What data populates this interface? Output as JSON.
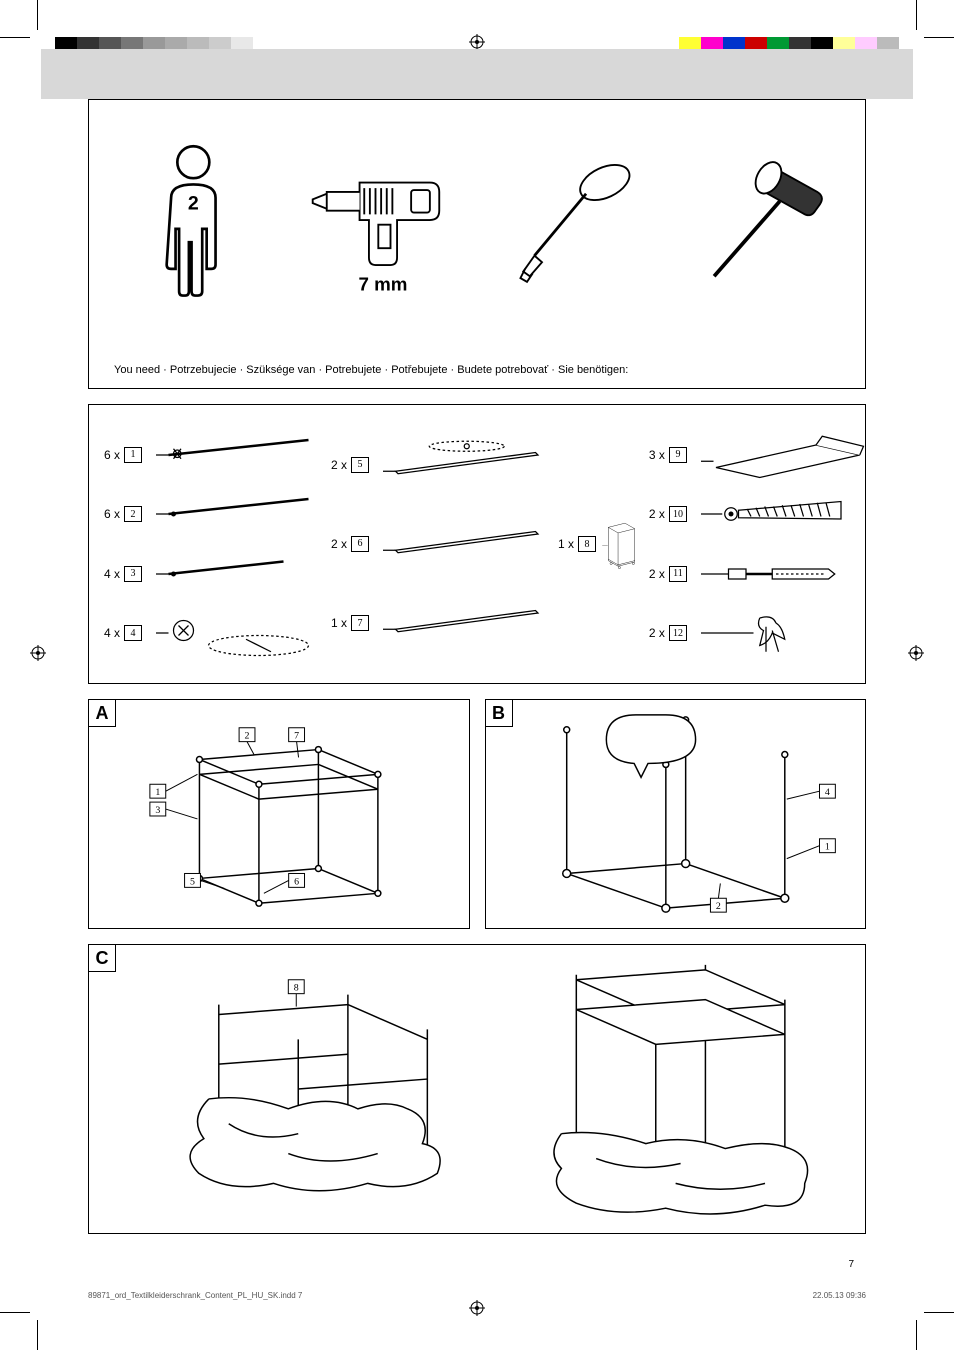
{
  "need_text": "You need · Potrzebujecie · Szüksége van · Potrebujete · Potřebujete · Budete potrebovať · Sie benötigen:",
  "people_count": "2",
  "drill_size": "7 mm",
  "parts": [
    {
      "qty": "6 x",
      "num": "1"
    },
    {
      "qty": "6 x",
      "num": "2"
    },
    {
      "qty": "4 x",
      "num": "3"
    },
    {
      "qty": "4 x",
      "num": "4"
    },
    {
      "qty": "2 x",
      "num": "5"
    },
    {
      "qty": "2 x",
      "num": "6"
    },
    {
      "qty": "1 x",
      "num": "7"
    },
    {
      "qty": "1 x",
      "num": "8"
    },
    {
      "qty": "3 x",
      "num": "9"
    },
    {
      "qty": "2 x",
      "num": "10"
    },
    {
      "qty": "2 x",
      "num": "11"
    },
    {
      "qty": "2 x",
      "num": "12"
    }
  ],
  "steps": {
    "a": "A",
    "b": "B",
    "c": "C"
  },
  "stepA_nums": [
    "2",
    "7",
    "1",
    "3",
    "5",
    "6"
  ],
  "stepB_nums": [
    "4",
    "1",
    "2"
  ],
  "stepC_nums": [
    "8"
  ],
  "colorbar_left": [
    "#000000",
    "#333333",
    "#555555",
    "#777777",
    "#999999",
    "#aaaaaa",
    "#bbbbbb",
    "#cccccc",
    "#e8e8e8",
    "#ffffff"
  ],
  "colorbar_right": [
    "#ffff33",
    "#ff00cc",
    "#0033cc",
    "#cc0000",
    "#009933",
    "#333333",
    "#000000",
    "#ffff99",
    "#ffccff",
    "#bbbbbb"
  ],
  "footer_left": "89871_ord_Textilkleiderschrank_Content_PL_HU_SK.indd   7",
  "footer_right": "22.05.13   09:36",
  "page_number": "7"
}
